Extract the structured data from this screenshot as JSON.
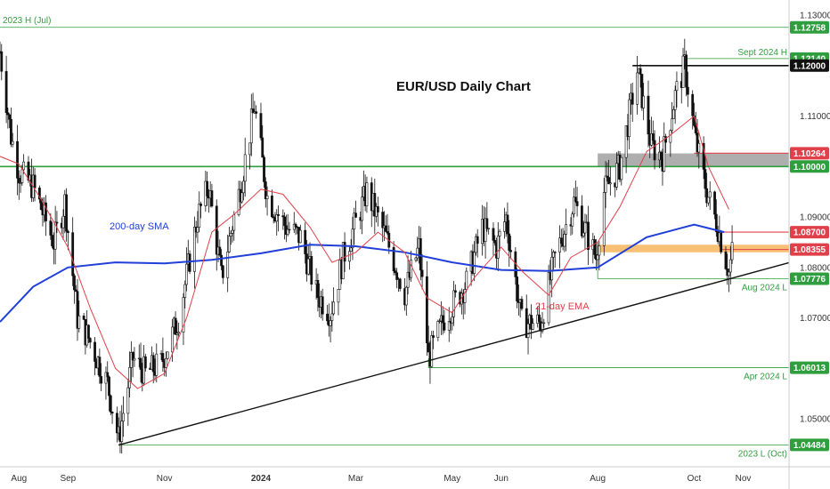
{
  "chart_data": {
    "type": "candlestick",
    "title": "EUR/USD Daily Chart",
    "y_range": [
      1.0405,
      1.133
    ],
    "y_ticks": [
      {
        "value": 1.13,
        "label": "1.13000"
      },
      {
        "value": 1.11,
        "label": "1.11000"
      },
      {
        "value": 1.09,
        "label": "1.09000"
      },
      {
        "value": 1.08,
        "label": "1.08000"
      },
      {
        "value": 1.07,
        "label": "1.07000"
      },
      {
        "value": 1.05,
        "label": "1.05000"
      }
    ],
    "x_range": [
      "2023-07-20",
      "2024-11-30"
    ],
    "x_ticks": [
      {
        "date": "2023-08-01",
        "label": "Aug"
      },
      {
        "date": "2023-09-01",
        "label": "Sep"
      },
      {
        "date": "2023-11-01",
        "label": "Nov"
      },
      {
        "date": "2024-01-01",
        "label": "2024"
      },
      {
        "date": "2024-03-01",
        "label": "Mar"
      },
      {
        "date": "2024-05-01",
        "label": "May"
      },
      {
        "date": "2024-06-01",
        "label": "Jun"
      },
      {
        "date": "2024-08-01",
        "label": "Aug"
      },
      {
        "date": "2024-10-01",
        "label": "Oct"
      },
      {
        "date": "2024-11-01",
        "label": "Nov"
      }
    ],
    "price_tags": [
      {
        "value": 1.12758,
        "label": "1.12758",
        "color": "#2e9e3e"
      },
      {
        "value": 1.1214,
        "label": "1.12140",
        "color": "#2e9e3e"
      },
      {
        "value": 1.12,
        "label": "1.12000",
        "color": "#111111"
      },
      {
        "value": 1.10264,
        "label": "1.10264",
        "color": "#e0404a"
      },
      {
        "value": 1.1,
        "label": "1.10000",
        "color": "#2e9e3e"
      },
      {
        "value": 1.087,
        "label": "1.08700",
        "color": "#e0404a"
      },
      {
        "value": 1.08355,
        "label": "1.08355",
        "color": "#e0404a"
      },
      {
        "value": 1.07776,
        "label": "1.07776",
        "color": "#2e9e3e"
      },
      {
        "value": 1.06013,
        "label": "1.06013",
        "color": "#2e9e3e"
      },
      {
        "value": 1.04484,
        "label": "1.04484",
        "color": "#2e9e3e"
      }
    ],
    "levels": [
      {
        "label": "2023 H (Jul)",
        "value": 1.12758,
        "from": "2023-07-20",
        "label_side": "left",
        "color": "#2e9e3e",
        "width": 0.8
      },
      {
        "label": "Sept 2024 H",
        "value": 1.1214,
        "from": "2024-09-25",
        "label_side": "right",
        "color": "#2e9e3e",
        "width": 0.8
      },
      {
        "label": "",
        "value": 1.12,
        "from": "2024-08-23",
        "label_side": "none",
        "color": "#111111",
        "width": 1.6
      },
      {
        "label": "",
        "value": 1.10264,
        "from": "2024-10-01",
        "label_side": "none",
        "color": "#e0404a",
        "width": 1.2
      },
      {
        "label": "",
        "value": 1.1,
        "from": "2023-07-20",
        "label_side": "none",
        "color": "#2e9e3e",
        "width": 1.6
      },
      {
        "label": "",
        "value": 1.087,
        "from": "2024-10-18",
        "label_side": "none",
        "color": "#e0404a",
        "width": 1.2
      },
      {
        "label": "",
        "value": 1.08355,
        "from": "2024-10-18",
        "label_side": "none",
        "color": "#e0404a",
        "width": 1.0
      },
      {
        "label": "Aug 2024 L",
        "value": 1.07776,
        "from": "2024-08-01",
        "label_side": "right",
        "color": "#2e9e3e",
        "width": 0.8
      },
      {
        "label": "Apr 2024 L",
        "value": 1.06013,
        "from": "2024-04-16",
        "label_side": "right",
        "color": "#2e9e3e",
        "width": 0.8
      },
      {
        "label": "2023 L (Oct)",
        "value": 1.04484,
        "from": "2023-10-03",
        "label_side": "right",
        "color": "#2e9e3e",
        "width": 0.8
      }
    ],
    "zones": [
      {
        "from": "2024-08-01",
        "y1": 1.1026,
        "y2": 1.1,
        "color": "#9a9a9a",
        "opacity": 0.8
      },
      {
        "from": "2024-08-01",
        "y1": 1.0845,
        "y2": 1.083,
        "color": "#f5a53a",
        "opacity": 0.7
      }
    ],
    "trendline": {
      "points": [
        [
          "2023-10-03",
          1.0448
        ],
        [
          "2024-04-16",
          1.0601
        ],
        [
          "2024-10-23",
          1.0777
        ]
      ],
      "extend_to": "2024-11-30",
      "color": "#111111"
    },
    "sma200": {
      "label": "200-day SMA",
      "color": "#1f3fd8",
      "points": [
        [
          "2023-07-20",
          1.0692
        ],
        [
          "2023-08-10",
          1.0762
        ],
        [
          "2023-09-01",
          1.08
        ],
        [
          "2023-10-01",
          1.081
        ],
        [
          "2023-11-01",
          1.0808
        ],
        [
          "2023-12-01",
          1.0815
        ],
        [
          "2024-01-01",
          1.0828
        ],
        [
          "2024-02-01",
          1.0845
        ],
        [
          "2024-03-01",
          1.0842
        ],
        [
          "2024-04-01",
          1.083
        ],
        [
          "2024-05-01",
          1.081
        ],
        [
          "2024-06-01",
          1.0795
        ],
        [
          "2024-07-01",
          1.0793
        ],
        [
          "2024-08-01",
          1.08
        ],
        [
          "2024-09-01",
          1.086
        ],
        [
          "2024-10-01",
          1.0885
        ],
        [
          "2024-10-20",
          1.087
        ]
      ]
    },
    "ema21": {
      "label": "21-day EMA",
      "color": "#e0404a",
      "points": [
        [
          "2023-07-20",
          1.102
        ],
        [
          "2023-08-01",
          1.1005
        ],
        [
          "2023-08-15",
          1.0935
        ],
        [
          "2023-09-01",
          1.084
        ],
        [
          "2023-09-15",
          1.072
        ],
        [
          "2023-10-01",
          1.06
        ],
        [
          "2023-10-15",
          1.056
        ],
        [
          "2023-11-01",
          1.059
        ],
        [
          "2023-11-15",
          1.07
        ],
        [
          "2023-12-01",
          1.087
        ],
        [
          "2023-12-15",
          1.0905
        ],
        [
          "2024-01-01",
          1.0955
        ],
        [
          "2024-01-15",
          1.0945
        ],
        [
          "2024-02-01",
          1.088
        ],
        [
          "2024-02-15",
          1.081
        ],
        [
          "2024-03-01",
          1.083
        ],
        [
          "2024-03-15",
          1.087
        ],
        [
          "2024-04-01",
          1.083
        ],
        [
          "2024-04-15",
          1.074
        ],
        [
          "2024-05-01",
          1.071
        ],
        [
          "2024-05-15",
          1.078
        ],
        [
          "2024-06-01",
          1.084
        ],
        [
          "2024-06-15",
          1.079
        ],
        [
          "2024-07-01",
          1.0745
        ],
        [
          "2024-07-15",
          1.082
        ],
        [
          "2024-08-01",
          1.085
        ],
        [
          "2024-08-15",
          1.092
        ],
        [
          "2024-09-01",
          1.103
        ],
        [
          "2024-09-15",
          1.106
        ],
        [
          "2024-10-01",
          1.11
        ],
        [
          "2024-10-10",
          1.1
        ],
        [
          "2024-10-23",
          1.0915
        ]
      ]
    },
    "price_path": [
      [
        "2023-07-20",
        1.1228
      ],
      [
        "2023-07-27",
        1.106
      ],
      [
        "2023-08-01",
        1.099
      ],
      [
        "2023-08-10",
        1.096
      ],
      [
        "2023-08-23",
        1.085
      ],
      [
        "2023-08-30",
        1.093
      ],
      [
        "2023-09-07",
        1.07
      ],
      [
        "2023-09-14",
        1.066
      ],
      [
        "2023-09-26",
        1.057
      ],
      [
        "2023-10-03",
        1.046
      ],
      [
        "2023-10-12",
        1.062
      ],
      [
        "2023-10-20",
        1.059
      ],
      [
        "2023-10-30",
        1.061
      ],
      [
        "2023-11-10",
        1.07
      ],
      [
        "2023-11-22",
        1.09
      ],
      [
        "2023-11-29",
        1.096
      ],
      [
        "2023-12-07",
        1.078
      ],
      [
        "2023-12-19",
        1.096
      ],
      [
        "2023-12-28",
        1.112
      ],
      [
        "2024-01-05",
        1.094
      ],
      [
        "2024-01-17",
        1.088
      ],
      [
        "2024-01-26",
        1.086
      ],
      [
        "2024-02-05",
        1.075
      ],
      [
        "2024-02-14",
        1.071
      ],
      [
        "2024-02-22",
        1.082
      ],
      [
        "2024-03-08",
        1.095
      ],
      [
        "2024-03-20",
        1.086
      ],
      [
        "2024-04-01",
        1.075
      ],
      [
        "2024-04-10",
        1.084
      ],
      [
        "2024-04-16",
        1.062
      ],
      [
        "2024-04-26",
        1.07
      ],
      [
        "2024-05-10",
        1.077
      ],
      [
        "2024-05-20",
        1.088
      ],
      [
        "2024-05-29",
        1.084
      ],
      [
        "2024-06-04",
        1.09
      ],
      [
        "2024-06-14",
        1.069
      ],
      [
        "2024-06-26",
        1.069
      ],
      [
        "2024-07-05",
        1.082
      ],
      [
        "2024-07-17",
        1.093
      ],
      [
        "2024-07-31",
        1.082
      ],
      [
        "2024-08-05",
        1.095
      ],
      [
        "2024-08-15",
        1.1
      ],
      [
        "2024-08-26",
        1.119
      ],
      [
        "2024-09-04",
        1.104
      ],
      [
        "2024-09-11",
        1.102
      ],
      [
        "2024-09-19",
        1.114
      ],
      [
        "2024-09-25",
        1.12
      ],
      [
        "2024-10-02",
        1.105
      ],
      [
        "2024-10-09",
        1.095
      ],
      [
        "2024-10-16",
        1.088
      ],
      [
        "2024-10-23",
        1.079
      ],
      [
        "2024-10-25",
        1.083
      ]
    ]
  }
}
